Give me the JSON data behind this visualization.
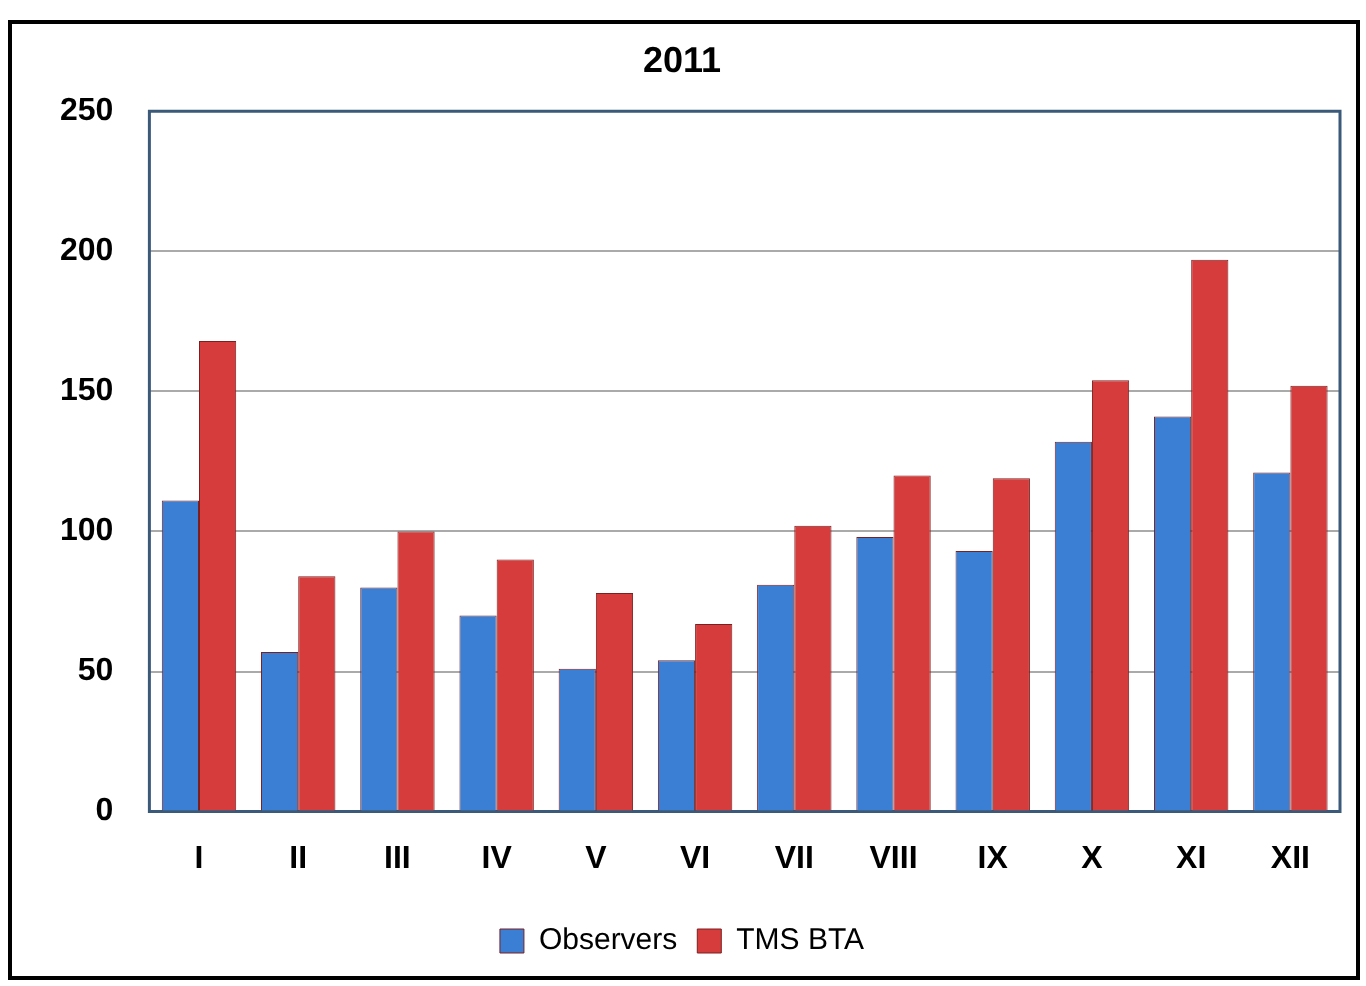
{
  "chart_data": {
    "type": "bar",
    "title": "2011",
    "categories": [
      "I",
      "II",
      "III",
      "IV",
      "V",
      "VI",
      "VII",
      "VIII",
      "IX",
      "X",
      "XI",
      "XII"
    ],
    "series": [
      {
        "name": "Observers",
        "color": "#3b7fd4",
        "values": [
          111,
          57,
          80,
          70,
          51,
          54,
          81,
          98,
          93,
          132,
          141,
          121
        ]
      },
      {
        "name": "TMS BTA",
        "color": "#d63c3c",
        "values": [
          168,
          84,
          100,
          90,
          78,
          67,
          102,
          120,
          119,
          154,
          197,
          152
        ]
      }
    ],
    "ylim": [
      0,
      250
    ],
    "yticks": [
      0,
      50,
      100,
      150,
      200,
      250
    ],
    "grid": "y",
    "legend": "bottom"
  }
}
